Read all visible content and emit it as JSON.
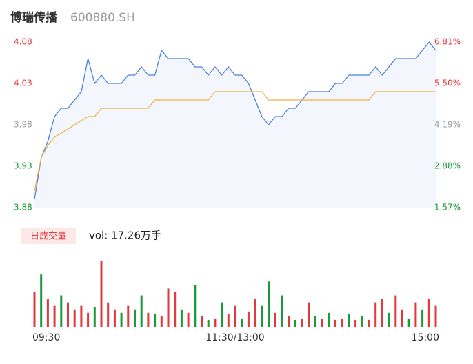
{
  "chart_data": {
    "type": "intraday",
    "title": "博瑞传播",
    "subtitle": "600880.SH",
    "x": [
      0,
      4,
      8,
      12,
      16,
      20,
      24,
      28,
      32,
      36,
      40,
      44,
      48,
      52,
      56,
      60,
      64,
      68,
      72,
      76,
      80,
      84,
      88,
      92,
      96,
      100,
      104,
      108,
      112,
      116,
      120,
      124,
      128,
      132,
      136,
      140,
      144,
      148,
      152,
      156,
      160,
      164,
      168,
      172,
      176,
      180,
      184,
      188,
      192,
      196,
      200,
      204,
      208,
      212,
      216,
      220,
      224,
      228,
      232,
      236,
      240
    ],
    "xlim": [
      0,
      240
    ],
    "xticks": [
      {
        "value": 0,
        "label": "09:30"
      },
      {
        "value": 120,
        "label": "11:30/13:00"
      },
      {
        "value": 240,
        "label": "15:00"
      }
    ],
    "series": [
      {
        "name": "price",
        "color": "#4a7fe0",
        "values": [
          3.89,
          3.94,
          3.96,
          3.99,
          4.0,
          4.0,
          4.01,
          4.02,
          4.06,
          4.03,
          4.04,
          4.03,
          4.03,
          4.03,
          4.04,
          4.04,
          4.05,
          4.04,
          4.04,
          4.07,
          4.06,
          4.06,
          4.06,
          4.06,
          4.05,
          4.05,
          4.04,
          4.05,
          4.04,
          4.05,
          4.04,
          4.04,
          4.03,
          4.01,
          3.99,
          3.98,
          3.99,
          3.99,
          4.0,
          4.0,
          4.01,
          4.02,
          4.02,
          4.02,
          4.02,
          4.03,
          4.03,
          4.04,
          4.04,
          4.04,
          4.04,
          4.05,
          4.04,
          4.05,
          4.06,
          4.06,
          4.06,
          4.06,
          4.07,
          4.08,
          4.07
        ]
      },
      {
        "name": "average",
        "color": "#f0b040",
        "values": [
          3.9,
          3.94,
          3.955,
          3.965,
          3.97,
          3.975,
          3.98,
          3.985,
          3.99,
          3.99,
          4.0,
          4.0,
          4.0,
          4.0,
          4.0,
          4.0,
          4.0,
          4.0,
          4.01,
          4.01,
          4.01,
          4.01,
          4.01,
          4.01,
          4.01,
          4.01,
          4.01,
          4.02,
          4.02,
          4.02,
          4.02,
          4.02,
          4.02,
          4.02,
          4.02,
          4.01,
          4.01,
          4.01,
          4.01,
          4.01,
          4.01,
          4.01,
          4.01,
          4.01,
          4.01,
          4.01,
          4.01,
          4.01,
          4.01,
          4.01,
          4.01,
          4.02,
          4.02,
          4.02,
          4.02,
          4.02,
          4.02,
          4.02,
          4.02,
          4.02,
          4.02
        ]
      }
    ],
    "ylim": [
      3.88,
      4.08
    ],
    "yticks": [
      4.08,
      4.03,
      3.98,
      3.93,
      3.88
    ],
    "ytick_colors": [
      "#e0393e",
      "#e0393e",
      "#999999",
      "#1a9a3a",
      "#1a9a3a"
    ],
    "y2lim": [
      1.57,
      6.81
    ],
    "y2ticks": [
      {
        "value": 6.81,
        "label": "6.81%"
      },
      {
        "value": 5.5,
        "label": "5.50%"
      },
      {
        "value": 4.19,
        "label": "4.19%"
      },
      {
        "value": 2.88,
        "label": "2.88%"
      },
      {
        "value": 1.57,
        "label": "1.57%"
      }
    ],
    "area_color": "#f3f6fc",
    "volume": {
      "tag": "日成交量",
      "label": "vol: 17.26万手",
      "values": [
        5000,
        7500,
        4000,
        3000,
        4500,
        3500,
        2500,
        3000,
        2000,
        2800,
        9500,
        3500,
        2500,
        2000,
        3000,
        2500,
        4500,
        2000,
        1800,
        1500,
        5500,
        5000,
        2500,
        2000,
        6000,
        1500,
        1000,
        1200,
        3500,
        1800,
        3000,
        1200,
        2200,
        4000,
        3000,
        6500,
        2000,
        4500,
        1500,
        1000,
        1200,
        3500,
        1500,
        1200,
        2000,
        1000,
        1200,
        1800,
        1000,
        1500,
        1000,
        3500,
        4000,
        2000,
        4500,
        2500,
        1200,
        3500,
        2500,
        4000,
        3000
      ],
      "colors": [
        "#e0393e",
        "#1a9a3a",
        "#e0393e",
        "#e0393e",
        "#1a9a3a",
        "#e0393e",
        "#e0393e",
        "#e0393e",
        "#e0393e",
        "#1a9a3a",
        "#e0393e",
        "#e0393e",
        "#e0393e",
        "#1a9a3a",
        "#e0393e",
        "#1a9a3a",
        "#1a9a3a",
        "#e0393e",
        "#1a9a3a",
        "#e0393e",
        "#e0393e",
        "#e0393e",
        "#1a9a3a",
        "#e0393e",
        "#1a9a3a",
        "#e0393e",
        "#1a9a3a",
        "#e0393e",
        "#1a9a3a",
        "#e0393e",
        "#e0393e",
        "#1a9a3a",
        "#e0393e",
        "#e0393e",
        "#1a9a3a",
        "#1a9a3a",
        "#e0393e",
        "#1a9a3a",
        "#e0393e",
        "#1a9a3a",
        "#e0393e",
        "#e0393e",
        "#1a9a3a",
        "#e0393e",
        "#1a9a3a",
        "#e0393e",
        "#e0393e",
        "#1a9a3a",
        "#e0393e",
        "#1a9a3a",
        "#e0393e",
        "#e0393e",
        "#e0393e",
        "#1a9a3a",
        "#e0393e",
        "#e0393e",
        "#1a9a3a",
        "#e0393e",
        "#1a9a3a",
        "#e0393e",
        "#e0393e"
      ]
    }
  }
}
